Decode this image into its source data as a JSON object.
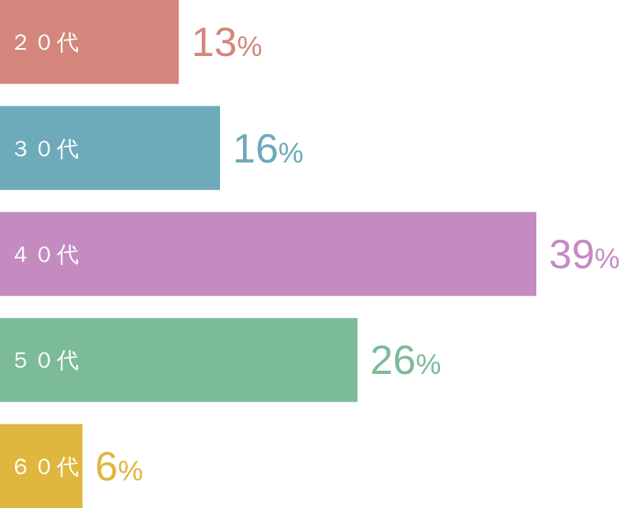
{
  "chart_data": {
    "type": "bar",
    "orientation": "horizontal",
    "relative": false,
    "categories": [
      "２０代",
      "３０代",
      "４０代",
      "５０代",
      "６０代"
    ],
    "values": [
      13,
      16,
      39,
      26,
      6
    ],
    "colors": [
      "#d4867c",
      "#6daaba",
      "#c48bc1",
      "#7cbb98",
      "#dfb73e"
    ],
    "value_labels": [
      "13%",
      "16%",
      "39%",
      "26%",
      "6%"
    ]
  }
}
